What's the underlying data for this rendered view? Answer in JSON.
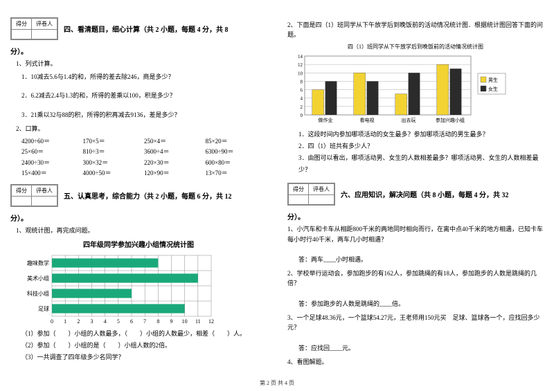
{
  "left": {
    "scoreHeaders": [
      "得分",
      "评卷人"
    ],
    "section4Title": "四、看清题目，细心计算（共 2 小题，每题 4 分，共 8",
    "section4Suffix": "分）。",
    "q4_1": "1、列式计算。",
    "q4_1_1": "1．10减去5.6与1.4的和，所得的差去除246，商是多少？",
    "q4_1_2": "2．6.2减去2.4与1.3的和，所得的差乘以100，积是多少？",
    "q4_1_3": "3．21乘以32与88的积，所得的积再减去9136，差是多少？",
    "q4_2": "2、口算。",
    "calcRows": [
      [
        "4200÷60＝",
        "170×5＝",
        "250×4＝",
        "85×20＝"
      ],
      [
        "25×60＝",
        "810÷3＝",
        "3600÷4＝",
        "6300÷90＝"
      ],
      [
        "2400÷30＝",
        "300×32＝",
        "220×30＝",
        "600×80＝"
      ],
      [
        "15×400＝",
        "4000÷50＝",
        "120×90＝",
        "13×70＝"
      ]
    ],
    "section5Title": "五、认真思考，综合能力（共 2 小题，每题 6 分，共 12",
    "section5Suffix": "分）。",
    "q5_1": "1、观统计图，再完成问题。",
    "chart1Title": "四年级同学参加兴趣小组情况统计图",
    "chart1": {
      "categories": [
        "趣味数学",
        "美术小组",
        "科技小组",
        "足球"
      ],
      "values": [
        8,
        11,
        6,
        10
      ],
      "xmax": 12,
      "barColor": "#1aa87a",
      "gridColor": "#888888",
      "bgColor": "#ffffff",
      "labelFont": 8
    },
    "q5_1a": "（1）参加（　　）小组的人数最多，（　　）小组的人数最少，相差（　　）人。",
    "q5_1b": "（2）参加（　　）小组的是（　　）小组人数的2倍。",
    "q5_1c": "（3）一共调查了四年级多少名同学？"
  },
  "right": {
    "q2Intro": "2、下面是四（1）班同学从下午放学后到晚饭前的活动情况统计图．根据统计图回答下面的问题。",
    "chart2Title": "四（1）班同学从下午放学后到晚饭前的活动情况统计图",
    "chart2": {
      "categories": [
        "做作业",
        "看电视",
        "出去玩",
        "参加兴趣小组"
      ],
      "legend": [
        "男生",
        "女生"
      ],
      "legendColors": [
        "#f2d333",
        "#2b2b2b"
      ],
      "male": [
        6,
        10,
        5,
        12
      ],
      "female": [
        8,
        8,
        10,
        11
      ],
      "ymax": 14,
      "ytick": 2,
      "gridColor": "#999999",
      "borderColor": "#666666"
    },
    "q2_1": "1．这段时间内参加哪项活动的女生最多？参加哪项活动的男生最多？",
    "q2_2": "2．四（1）班共有多少人？",
    "q2_3": "3．由图可以看出，哪项活动男、女生的人数相差最多？哪项活动男、女生的人数相差最少？",
    "scoreHeaders": [
      "得分",
      "评卷人"
    ],
    "section6Title": "六、应用知识，解决问题（共 8 小题，每题 4 分，共 32",
    "section6Suffix": "分）。",
    "q6_1": "1、小汽车和卡车从相距800千米的两地同时相向而行，在离中点40千米的地方相遇，已知卡车每小时行40千米，两车几小时相遇？",
    "a6_1": "答：两车____小时相遇。",
    "q6_2": "2、学校举行运动会，参加跑步的有162人，参加跳绳的有18人，参加跑步的人数是跳绳的几倍？",
    "a6_2": "答：参加跑步的人数是跳绳的____倍。",
    "q6_3": "3、一个足球48.36元，一个篮球54.27元，王老师用150元买　足球、篮球各一个，应找回多少元？",
    "a6_3": "答：应找回____元。",
    "q6_4": "4、看图解题。"
  },
  "footer": "第 2 页 共 4 页"
}
